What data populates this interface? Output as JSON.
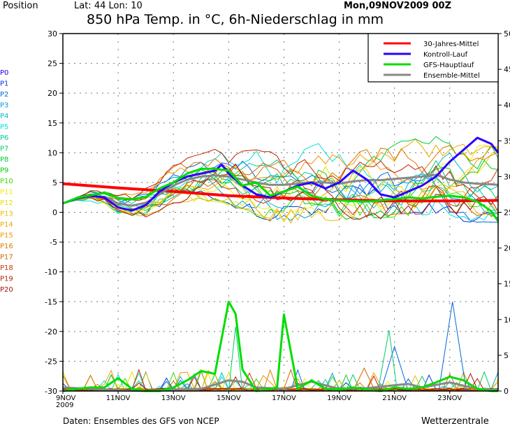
{
  "header": {
    "position_label": "Position",
    "coords": "Lat: 44 Lon: 10",
    "run": "Mon,09NOV2009  00Z",
    "title": "850 hPa Temp. in °C, 6h-Niederschlag in mm"
  },
  "footer": {
    "source": "Daten: Ensembles des GFS von NCEP",
    "brand": "Wetterzentrale"
  },
  "colors": {
    "clim": "#ff0000",
    "control": "#2a00ff",
    "gfs": "#00dd00",
    "mean": "#888888",
    "grid": "#777777"
  },
  "members": [
    {
      "name": "P0",
      "color": "#2200dd"
    },
    {
      "name": "P1",
      "color": "#0033dd"
    },
    {
      "name": "P2",
      "color": "#0066e0"
    },
    {
      "name": "P3",
      "color": "#0099e0"
    },
    {
      "name": "P4",
      "color": "#00bbcc"
    },
    {
      "name": "P5",
      "color": "#00dddd"
    },
    {
      "name": "P6",
      "color": "#00cc99"
    },
    {
      "name": "P7",
      "color": "#00cc66"
    },
    {
      "name": "P8",
      "color": "#00cc33"
    },
    {
      "name": "P9",
      "color": "#00cc00"
    },
    {
      "name": "P10",
      "color": "#33dd00"
    },
    {
      "name": "P11",
      "color": "#eeee00"
    },
    {
      "name": "P12",
      "color": "#eedd00"
    },
    {
      "name": "P13",
      "color": "#eebb00"
    },
    {
      "name": "P14",
      "color": "#eeaa00"
    },
    {
      "name": "P15",
      "color": "#ee9900"
    },
    {
      "name": "P16",
      "color": "#dd7700"
    },
    {
      "name": "P17",
      "color": "#cc6600"
    },
    {
      "name": "P18",
      "color": "#cc3300"
    },
    {
      "name": "P19",
      "color": "#bb2200"
    },
    {
      "name": "P20",
      "color": "#aa1111"
    }
  ],
  "chart_data": {
    "type": "line",
    "title": "850 hPa Temp. in °C, 6h-Niederschlag in mm",
    "xlabel": "",
    "ylabel_left": "°C",
    "ylabel_right": "mm",
    "x_unit": "days since 9NOV2009 00Z",
    "xlim": [
      0,
      15.75
    ],
    "ylim_left": [
      -30,
      30
    ],
    "ylim_right": [
      0,
      50
    ],
    "grid": true,
    "legend_position": "top-right",
    "x_ticks": [
      {
        "value": 0,
        "label": "9NOV",
        "sublabel": "2009"
      },
      {
        "value": 2,
        "label": "11NOV"
      },
      {
        "value": 4,
        "label": "13NOV"
      },
      {
        "value": 6,
        "label": "15NOV"
      },
      {
        "value": 8,
        "label": "17NOV"
      },
      {
        "value": 10,
        "label": "19NOV"
      },
      {
        "value": 12,
        "label": "21NOV"
      },
      {
        "value": 14,
        "label": "23NOV"
      }
    ],
    "y_ticks_left": [
      30,
      25,
      20,
      15,
      10,
      5,
      0,
      -5,
      -10,
      -15,
      -20,
      -25,
      -30
    ],
    "y_ticks_right": [
      50,
      45,
      40,
      35,
      30,
      25,
      20,
      15,
      10,
      5,
      0
    ],
    "legend": [
      {
        "label": "30-Jahres-Mittel",
        "series": "clim"
      },
      {
        "label": "Kontroll-Lauf",
        "series": "control"
      },
      {
        "label": "GFS-Hauptlauf",
        "series": "gfs"
      },
      {
        "label": "Ensemble-Mittel",
        "series": "mean"
      }
    ],
    "temperature": {
      "clim": {
        "x": [
          0,
          2,
          4,
          6,
          8,
          10,
          12,
          14,
          15.75
        ],
        "y": [
          4.8,
          4.1,
          3.5,
          2.8,
          2.4,
          2.1,
          1.9,
          1.9,
          2.0
        ]
      },
      "control": {
        "x": [
          0,
          0.5,
          1,
          1.5,
          2,
          2.5,
          3,
          3.5,
          4,
          4.5,
          5,
          5.5,
          5.75,
          6,
          6.5,
          7,
          7.5,
          8,
          8.5,
          9,
          9.5,
          10,
          10.5,
          11,
          11.5,
          12,
          12.5,
          13,
          13.5,
          14,
          14.5,
          15,
          15.5,
          15.75
        ],
        "y": [
          1.5,
          2.3,
          2.8,
          2.5,
          0.8,
          0.3,
          1.2,
          3.5,
          5,
          6,
          6.5,
          7,
          8,
          6.5,
          4.5,
          3,
          2.5,
          3.5,
          4.5,
          5,
          4,
          5,
          7,
          5.5,
          3,
          2.5,
          3.5,
          4.5,
          6,
          8.5,
          10.5,
          12.5,
          11.5,
          10
        ]
      },
      "gfs": {
        "x": [
          0,
          0.5,
          1,
          1.5,
          2,
          2.5,
          3,
          3.5,
          4,
          4.5,
          5,
          5.5,
          6,
          6.5,
          7,
          7.5,
          8,
          8.5,
          9,
          9.5,
          10,
          10.5,
          11,
          11.5,
          12,
          12.5,
          13,
          13.5,
          14,
          14.5,
          15,
          15.5,
          15.75
        ],
        "y": [
          1.5,
          2.4,
          2.9,
          3.2,
          2.4,
          2.2,
          2.6,
          4,
          5,
          6.5,
          7.3,
          7.3,
          7,
          4.5,
          5,
          2.8,
          3.5,
          4.3,
          2.8,
          2.2,
          2,
          1.9,
          1.8,
          2,
          2.2,
          2.5,
          2.3,
          2.6,
          2.8,
          2.5,
          1.8,
          0.2,
          -1.5
        ]
      },
      "mean": {
        "x": [
          0,
          0.5,
          1,
          1.5,
          2,
          2.5,
          3,
          3.5,
          4,
          4.5,
          5,
          5.5,
          6,
          6.5,
          7,
          7.5,
          8,
          8.5,
          9,
          9.5,
          10,
          10.5,
          11,
          11.5,
          12,
          12.5,
          13,
          13.5,
          14,
          14.5,
          15,
          15.5,
          15.75
        ],
        "y": [
          1.5,
          2.3,
          2.7,
          2.6,
          1.5,
          1.1,
          1.6,
          3,
          4.5,
          5.5,
          6,
          6.2,
          6,
          5.5,
          5,
          4.6,
          4.6,
          4.8,
          5,
          5,
          4.8,
          5.2,
          5.4,
          5.4,
          5.6,
          5.8,
          6,
          6.3,
          5.5,
          5,
          4.8,
          4.7,
          4.6
        ]
      }
    },
    "precipitation": {
      "gfs": {
        "x": [
          0,
          0.5,
          1,
          1.5,
          2,
          2.5,
          3,
          3.5,
          4,
          4.5,
          5,
          5.5,
          6,
          6.25,
          6.5,
          7,
          7.5,
          7.75,
          8,
          8.5,
          9,
          9.5,
          10,
          10.5,
          11,
          11.5,
          12,
          12.5,
          13,
          13.5,
          14,
          14.5,
          15,
          15.5,
          15.75
        ],
        "y": [
          0,
          0.3,
          0.5,
          0.5,
          1.8,
          0.3,
          0,
          0,
          0.5,
          1.5,
          2.8,
          2.4,
          12.5,
          10.8,
          3,
          0,
          0.3,
          0.5,
          10.7,
          0.3,
          1.5,
          0.3,
          0.2,
          0.5,
          0.2,
          0,
          0.5,
          0.3,
          0.5,
          1.2,
          2,
          1.5,
          0.3,
          0,
          0
        ]
      },
      "mean": {
        "x": [
          0,
          1,
          2,
          3,
          4,
          5,
          6,
          6.5,
          7,
          8,
          9,
          10,
          11,
          12,
          12.5,
          13,
          14,
          15,
          15.75
        ],
        "y": [
          0.5,
          0.3,
          0.1,
          0,
          0.2,
          0.3,
          1.5,
          1.3,
          0.5,
          0.3,
          1.3,
          0.3,
          0.4,
          0.8,
          1,
          0.5,
          1.2,
          0.3,
          0.1
        ]
      }
    }
  }
}
